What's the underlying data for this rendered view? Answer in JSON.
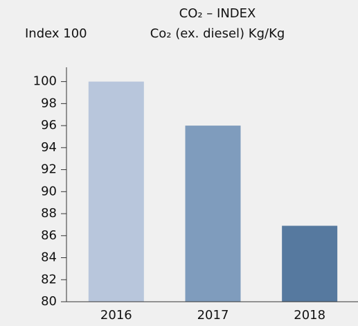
{
  "chart_data": {
    "type": "bar",
    "title": "CO₂ – INDEX",
    "subtitle": "Co₂ (ex. diesel) Kg/Kg",
    "y_label": "Index 100",
    "categories": [
      "2016",
      "2017",
      "2018"
    ],
    "values": [
      100,
      96,
      86.9
    ],
    "colors": [
      "#b8c6dc",
      "#7f9cbd",
      "#56799f"
    ],
    "ylim": [
      80,
      101.3
    ],
    "yticks": [
      80,
      82,
      84,
      86,
      88,
      90,
      92,
      94,
      96,
      98,
      100
    ],
    "grid": false
  }
}
